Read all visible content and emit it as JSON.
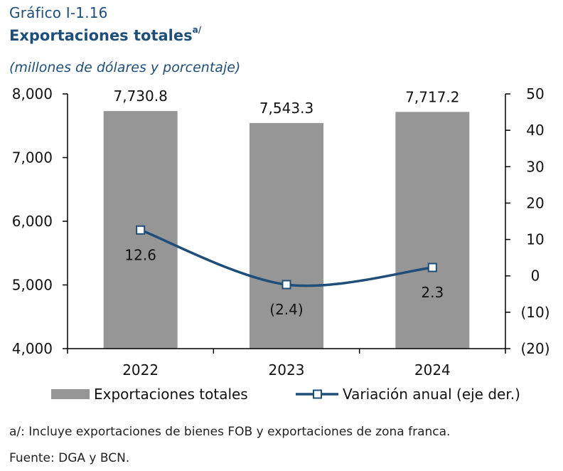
{
  "header": {
    "figure_label": "Gráfico I-1.16",
    "title": "Exportaciones totales",
    "title_note": "a/",
    "subtitle": "(millones de dólares y porcentaje)"
  },
  "footer": {
    "footnote": "a/: Incluye exportaciones de bienes FOB y exportaciones de zona franca.",
    "source": "Fuente: DGA y BCN."
  },
  "colors": {
    "bar": "#969696",
    "line": "#1f4e79",
    "marker_fill": "#ffffff",
    "header_text": "#1f4e79"
  },
  "chart_data": {
    "type": "bar",
    "categories": [
      "2022",
      "2023",
      "2024"
    ],
    "series": [
      {
        "name": "Exportaciones totales",
        "type": "bar",
        "axis": "left",
        "values": [
          7730.8,
          7543.3,
          7717.2
        ],
        "labels": [
          "7,730.8",
          "7,543.3",
          "7,717.2"
        ]
      },
      {
        "name": "Variación anual (eje der.)",
        "type": "line",
        "axis": "right",
        "values": [
          12.6,
          -2.4,
          2.3
        ],
        "labels": [
          "12.6",
          "(2.4)",
          "2.3"
        ]
      }
    ],
    "y_left": {
      "lim": [
        4000,
        8000
      ],
      "ticks": [
        4000,
        5000,
        6000,
        7000,
        8000
      ],
      "tick_labels": [
        "4,000",
        "5,000",
        "6,000",
        "7,000",
        "8,000"
      ]
    },
    "y_right": {
      "lim": [
        -20,
        50
      ],
      "ticks": [
        -20,
        -10,
        0,
        10,
        20,
        30,
        40,
        50
      ],
      "tick_labels": [
        "(20)",
        "(10)",
        "0",
        "10",
        "20",
        "30",
        "40",
        "50"
      ]
    },
    "legend": {
      "position": "bottom",
      "entries": [
        "Exportaciones totales",
        "Variación anual (eje der.)"
      ]
    },
    "grid": false
  }
}
